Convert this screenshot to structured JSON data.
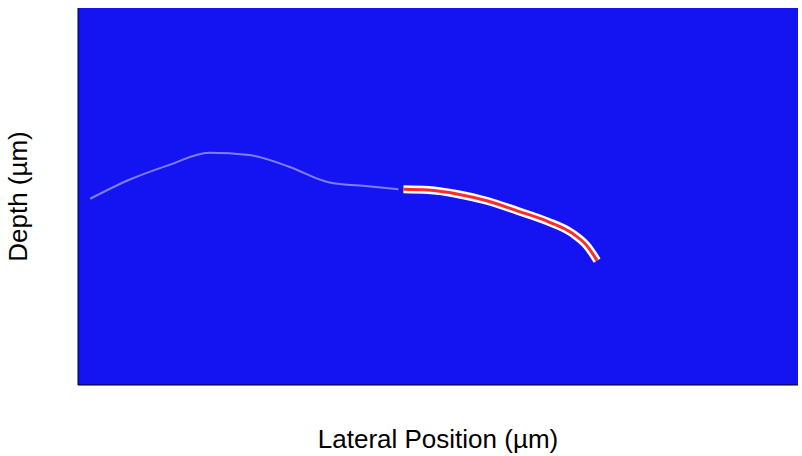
{
  "chart_data": {
    "type": "line",
    "x_label": "Lateral Position (µm)",
    "y_label": "Depth (µm)",
    "xlim": [
      0,
      100
    ],
    "ylim": [
      0,
      100
    ],
    "xticks": [],
    "yticks": [
      74
    ],
    "tick_labels": false,
    "grid": false,
    "series": [
      {
        "color": "#ff2a2a",
        "x": [
          45.2,
          48.6,
          52.8,
          56.9,
          61.0,
          65.2,
          68.6,
          70.7,
          72.1
        ],
        "values": [
          51.9,
          51.7,
          50.6,
          48.8,
          46.2,
          43.4,
          40.3,
          36.9,
          33.0
        ]
      },
      {
        "color": "#ffffff",
        "x": [
          1.7,
          7.2,
          12.7,
          18.2,
          23.8,
          29.3,
          34.8,
          40.3,
          44.5
        ],
        "values": [
          49.4,
          54.5,
          58.4,
          61.6,
          61.0,
          57.9,
          53.8,
          52.7,
          51.9
        ]
      }
    ]
  }
}
